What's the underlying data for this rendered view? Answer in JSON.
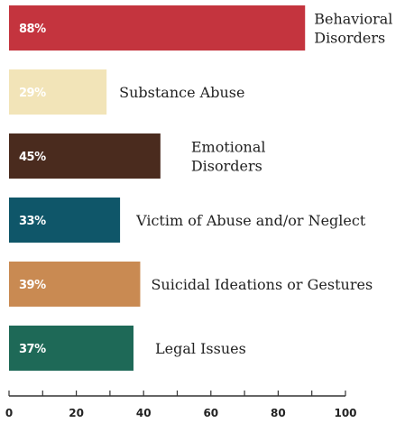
{
  "chart_data": {
    "type": "bar",
    "orientation": "horizontal",
    "categories": [
      [
        "Behavioral",
        "Disorders"
      ],
      [
        "Substance Abuse"
      ],
      [
        "Emotional",
        "Disorders"
      ],
      [
        "Victim of Abuse and/or Neglect"
      ],
      [
        "Suicidal Ideations or Gestures"
      ],
      [
        "Legal Issues"
      ]
    ],
    "values": [
      88,
      29,
      45,
      33,
      39,
      37
    ],
    "value_labels": [
      "88%",
      "29%",
      "45%",
      "33%",
      "39%",
      "37%"
    ],
    "colors": [
      "#c4343e",
      "#f2e4b8",
      "#4a2b1e",
      "#0f5669",
      "#c98a52",
      "#1e6957"
    ],
    "value_label_colors": [
      "#ffffff",
      "#ffffff",
      "#ffffff",
      "#ffffff",
      "#ffffff",
      "#ffffff"
    ],
    "x_ticks": [
      "0",
      "20",
      "40",
      "60",
      "80",
      "100"
    ],
    "xlim": [
      0,
      100
    ],
    "grid": false,
    "legend": "none"
  }
}
